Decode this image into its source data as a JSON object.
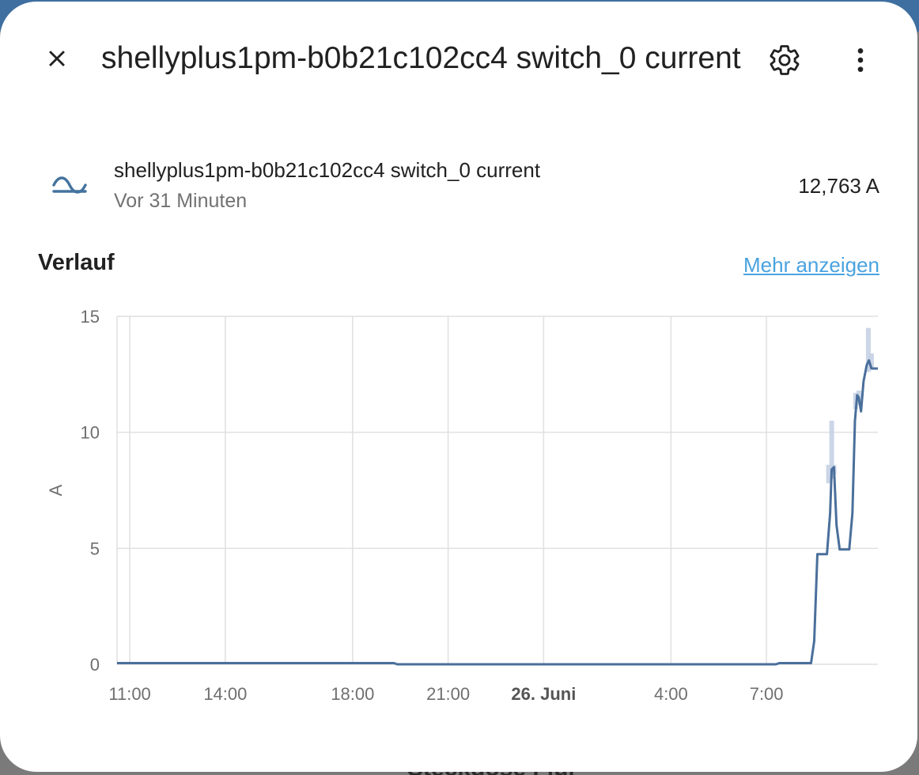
{
  "dialog": {
    "title": "shellyplus1pm-b0b21c102cc4 switch_0 current"
  },
  "icons": {
    "close": "close-icon",
    "settings": "gear-icon",
    "more": "dots-vertical-icon",
    "entity": "current-ac-icon"
  },
  "entity": {
    "name": "shellyplus1pm-b0b21c102cc4 switch_0 current",
    "last_changed": "Vor 31 Minuten",
    "state": "12,763 A"
  },
  "history": {
    "section_title": "Verlauf",
    "more_link": "Mehr anzeigen"
  },
  "colors": {
    "line": "#4a6f9b",
    "band": "#c5d1e4",
    "link": "#4aa3e0",
    "grid": "#e0e0e0"
  },
  "chart_data": {
    "type": "line",
    "ylabel": "A",
    "ylim": [
      0,
      15
    ],
    "y_ticks": [
      "0",
      "5",
      "10",
      "15"
    ],
    "x_ticks": [
      {
        "label": "11:00",
        "hours": 11,
        "bold": false
      },
      {
        "label": "14:00",
        "hours": 14,
        "bold": false
      },
      {
        "label": "18:00",
        "hours": 18,
        "bold": false
      },
      {
        "label": "21:00",
        "hours": 21,
        "bold": false
      },
      {
        "label": "26. Juni",
        "hours": 24,
        "bold": true
      },
      {
        "label": "4:00",
        "hours": 28,
        "bold": false
      },
      {
        "label": "7:00",
        "hours": 31,
        "bold": false
      }
    ],
    "xlim_hours": [
      10.6,
      34.5
    ],
    "grid": true,
    "series": [
      {
        "points": [
          [
            10.6,
            0.05
          ],
          [
            18.0,
            0.05
          ],
          [
            19.3,
            0.05
          ],
          [
            19.4,
            0.0
          ],
          [
            31.3,
            0.0
          ],
          [
            31.4,
            0.05
          ],
          [
            32.4,
            0.05
          ],
          [
            32.5,
            1.0
          ],
          [
            32.6,
            4.75
          ],
          [
            32.9,
            4.75
          ],
          [
            33.0,
            6.5
          ],
          [
            33.05,
            8.4
          ],
          [
            33.12,
            8.5
          ],
          [
            33.2,
            6.0
          ],
          [
            33.3,
            4.95
          ],
          [
            33.6,
            4.95
          ],
          [
            33.7,
            6.5
          ],
          [
            33.78,
            10.5
          ],
          [
            33.85,
            11.6
          ],
          [
            33.9,
            11.5
          ],
          [
            33.97,
            10.9
          ],
          [
            34.05,
            12.2
          ],
          [
            34.15,
            12.9
          ],
          [
            34.22,
            13.1
          ],
          [
            34.3,
            12.75
          ],
          [
            34.5,
            12.75
          ]
        ],
        "band": [
          [
            32.95,
            7.8,
            8.6
          ],
          [
            33.05,
            8.0,
            10.5
          ],
          [
            33.12,
            8.2,
            8.6
          ],
          [
            33.8,
            11.0,
            11.7
          ],
          [
            33.9,
            11.2,
            11.8
          ],
          [
            34.2,
            12.6,
            14.5
          ],
          [
            34.3,
            12.7,
            13.4
          ]
        ]
      }
    ]
  }
}
